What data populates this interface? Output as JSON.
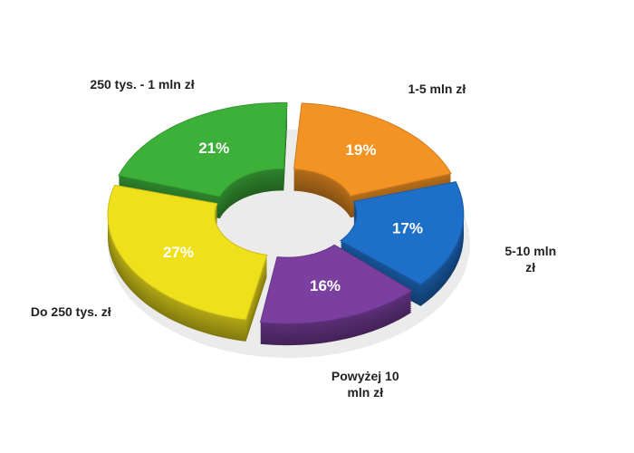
{
  "chart_data": {
    "type": "donut",
    "categories": [
      "1-5 mln zł",
      "5-10 mln zł",
      "Powyżej 10 mln zł",
      "Do 250 tys. zł",
      "250 tys. - 1 mln zł"
    ],
    "values": [
      19,
      17,
      16,
      27,
      21
    ],
    "value_labels": [
      "19%",
      "17%",
      "16%",
      "27%",
      "21%"
    ],
    "colors": [
      "#f39323",
      "#1e6fc8",
      "#7b3fa0",
      "#efe01c",
      "#3db03a"
    ]
  }
}
